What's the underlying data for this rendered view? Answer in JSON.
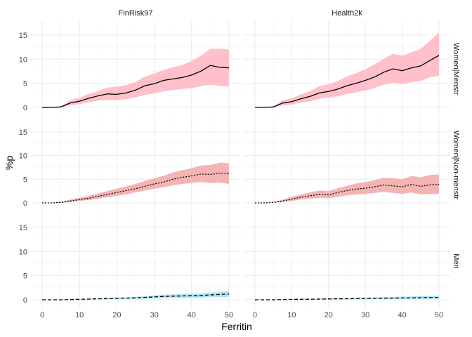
{
  "chart_data": {
    "type": "area",
    "xlabel": "Ferritin",
    "ylabel": "%p",
    "xlim": [
      0,
      50
    ],
    "ylim": [
      0,
      16
    ],
    "x_ticks": [
      0,
      10,
      20,
      30,
      40,
      50
    ],
    "y_ticks": [
      0,
      5,
      10,
      15
    ],
    "grid": true,
    "legend": "none",
    "columns": [
      "FinRisk97",
      "Health2k"
    ],
    "rows": [
      "Women|Menstr",
      "Women|Non-menstr",
      "Men"
    ],
    "row_styles": {
      "Women|Menstr": {
        "fill": "#ffc0cb",
        "dash": "solid"
      },
      "Women|Non-menstr": {
        "fill": "#f4b4b4",
        "dash": "dotted"
      },
      "Men": {
        "fill": "#aee6f5",
        "dash": "dashed"
      }
    },
    "line_color": "#000000",
    "panels": [
      {
        "column": "FinRisk97",
        "row": "Women|Menstr",
        "x": [
          0,
          2.5,
          5,
          7.5,
          10,
          12.5,
          15,
          17.5,
          20,
          22.5,
          25,
          27.5,
          30,
          32.5,
          35,
          37.5,
          40,
          42.5,
          45,
          47.5,
          50
        ],
        "y": [
          0,
          0,
          0.1,
          0.9,
          1.3,
          1.9,
          2.4,
          2.8,
          2.7,
          3.0,
          3.6,
          4.5,
          4.9,
          5.6,
          5.9,
          6.2,
          6.7,
          7.5,
          8.7,
          8.3,
          8.2
        ],
        "lower": [
          0,
          0,
          0,
          0.4,
          0.7,
          1.1,
          1.4,
          1.6,
          1.5,
          1.7,
          2.1,
          2.6,
          2.9,
          3.3,
          3.6,
          3.8,
          4.0,
          4.4,
          4.7,
          4.5,
          4.3
        ],
        "upper": [
          0,
          0,
          0.2,
          1.5,
          2.0,
          2.8,
          3.4,
          4.1,
          4.3,
          4.6,
          5.3,
          6.4,
          7.0,
          7.8,
          8.3,
          8.8,
          9.6,
          10.7,
          12.1,
          12.2,
          12.0
        ]
      },
      {
        "column": "Health2k",
        "row": "Women|Menstr",
        "x": [
          0,
          2.5,
          5,
          7.5,
          10,
          12.5,
          15,
          17.5,
          20,
          22.5,
          25,
          27.5,
          30,
          32.5,
          35,
          37.5,
          40,
          42.5,
          45,
          47.5,
          50
        ],
        "y": [
          0,
          0,
          0.1,
          0.9,
          1.2,
          1.8,
          2.3,
          3.0,
          3.3,
          3.8,
          4.5,
          5.0,
          5.6,
          6.3,
          7.3,
          8.0,
          7.6,
          8.2,
          8.6,
          9.7,
          10.8
        ],
        "lower": [
          0,
          0,
          0,
          0.4,
          0.6,
          1.0,
          1.3,
          1.8,
          2.0,
          2.3,
          2.8,
          3.1,
          3.5,
          4.0,
          4.7,
          5.1,
          4.8,
          5.2,
          5.5,
          6.2,
          6.6
        ],
        "upper": [
          0,
          0,
          0.2,
          1.5,
          1.9,
          2.7,
          3.4,
          4.4,
          4.8,
          5.5,
          6.4,
          7.1,
          7.9,
          8.9,
          10.1,
          11.1,
          10.7,
          11.4,
          12.1,
          13.8,
          15.5
        ]
      },
      {
        "column": "FinRisk97",
        "row": "Women|Non-menstr",
        "x": [
          0,
          2.5,
          5,
          7.5,
          10,
          12.5,
          15,
          17.5,
          20,
          22.5,
          25,
          27.5,
          30,
          32.5,
          35,
          37.5,
          40,
          42.5,
          45,
          47.5,
          50
        ],
        "y": [
          0,
          0,
          0.1,
          0.4,
          0.7,
          1.0,
          1.4,
          1.8,
          2.2,
          2.6,
          3.0,
          3.5,
          4.0,
          4.4,
          5.0,
          5.4,
          5.7,
          6.1,
          6.0,
          6.3,
          6.2
        ],
        "lower": [
          0,
          0,
          0,
          0.2,
          0.4,
          0.6,
          0.9,
          1.2,
          1.5,
          1.8,
          2.2,
          2.6,
          3.0,
          3.3,
          3.7,
          4.0,
          4.2,
          4.4,
          4.2,
          4.3,
          4.0
        ],
        "upper": [
          0,
          0,
          0.2,
          0.7,
          1.1,
          1.5,
          2.0,
          2.5,
          3.0,
          3.5,
          4.0,
          4.6,
          5.2,
          5.7,
          6.4,
          6.9,
          7.3,
          7.9,
          8.0,
          8.5,
          8.4
        ]
      },
      {
        "column": "Health2k",
        "row": "Women|Non-menstr",
        "x": [
          0,
          2.5,
          5,
          7.5,
          10,
          12.5,
          15,
          17.5,
          20,
          22.5,
          25,
          27.5,
          30,
          32.5,
          35,
          37.5,
          40,
          42.5,
          45,
          47.5,
          50
        ],
        "y": [
          0,
          0,
          0.1,
          0.4,
          0.8,
          1.2,
          1.5,
          1.8,
          1.7,
          2.2,
          2.6,
          2.9,
          3.1,
          3.4,
          3.8,
          3.6,
          3.4,
          3.9,
          3.5,
          3.8,
          3.9
        ],
        "lower": [
          0,
          0,
          0,
          0.2,
          0.4,
          0.7,
          0.9,
          1.1,
          1.0,
          1.3,
          1.6,
          1.8,
          1.9,
          2.1,
          2.3,
          2.1,
          1.9,
          2.2,
          1.8,
          1.9,
          1.9
        ],
        "upper": [
          0,
          0,
          0.2,
          0.7,
          1.3,
          1.8,
          2.2,
          2.6,
          2.5,
          3.1,
          3.6,
          4.1,
          4.4,
          4.8,
          5.3,
          5.2,
          5.0,
          5.7,
          5.4,
          5.9,
          6.0
        ]
      },
      {
        "column": "FinRisk97",
        "row": "Men",
        "x": [
          0,
          2.5,
          5,
          7.5,
          10,
          12.5,
          15,
          17.5,
          20,
          22.5,
          25,
          27.5,
          30,
          32.5,
          35,
          37.5,
          40,
          42.5,
          45,
          47.5,
          50
        ],
        "y": [
          0,
          0,
          0,
          0.05,
          0.1,
          0.15,
          0.2,
          0.25,
          0.3,
          0.35,
          0.4,
          0.5,
          0.6,
          0.7,
          0.75,
          0.8,
          0.85,
          0.9,
          1.0,
          1.1,
          1.2
        ],
        "lower": [
          0,
          0,
          0,
          0,
          0.05,
          0.08,
          0.1,
          0.12,
          0.15,
          0.18,
          0.2,
          0.25,
          0.3,
          0.35,
          0.38,
          0.4,
          0.42,
          0.45,
          0.5,
          0.55,
          0.6
        ],
        "upper": [
          0,
          0,
          0,
          0.1,
          0.15,
          0.22,
          0.3,
          0.38,
          0.45,
          0.52,
          0.6,
          0.75,
          0.9,
          1.05,
          1.1,
          1.2,
          1.3,
          1.35,
          1.5,
          1.65,
          1.8
        ]
      },
      {
        "column": "Health2k",
        "row": "Men",
        "x": [
          0,
          2.5,
          5,
          7.5,
          10,
          12.5,
          15,
          17.5,
          20,
          22.5,
          25,
          27.5,
          30,
          32.5,
          35,
          37.5,
          40,
          42.5,
          45,
          47.5,
          50
        ],
        "y": [
          0,
          0,
          0,
          0.05,
          0.08,
          0.1,
          0.12,
          0.15,
          0.18,
          0.2,
          0.22,
          0.25,
          0.28,
          0.3,
          0.32,
          0.35,
          0.38,
          0.4,
          0.42,
          0.45,
          0.5
        ],
        "lower": [
          0,
          0,
          0,
          0,
          0.03,
          0.05,
          0.06,
          0.07,
          0.08,
          0.1,
          0.11,
          0.12,
          0.13,
          0.14,
          0.15,
          0.16,
          0.17,
          0.18,
          0.19,
          0.2,
          0.22
        ],
        "upper": [
          0,
          0,
          0,
          0.1,
          0.15,
          0.18,
          0.2,
          0.24,
          0.28,
          0.32,
          0.35,
          0.4,
          0.45,
          0.5,
          0.55,
          0.6,
          0.65,
          0.7,
          0.75,
          0.8,
          0.85
        ]
      }
    ]
  }
}
